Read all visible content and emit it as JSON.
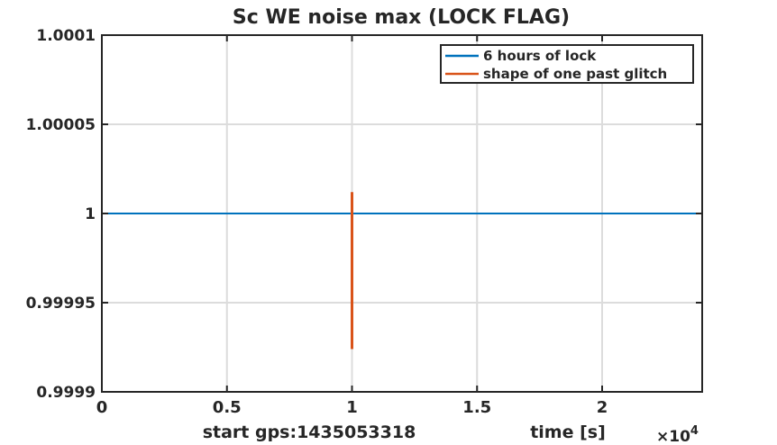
{
  "chart_data": {
    "type": "line",
    "title": "Sc WE noise max (LOCK FLAG)",
    "xlabel": "time [s]",
    "x_note": "start gps:1435053318",
    "x_multiplier": {
      "base": "×10",
      "exp": "4"
    },
    "xlim": [
      0,
      24000
    ],
    "ylim": [
      0.9999,
      1.0001
    ],
    "xticks": [
      0,
      5000,
      10000,
      15000,
      20000
    ],
    "xtick_labels": [
      "0",
      "0.5",
      "1",
      "1.5",
      "2"
    ],
    "yticks": [
      0.9999,
      0.99995,
      1,
      1.00005,
      1.0001
    ],
    "ytick_labels": [
      "0.9999",
      "0.99995",
      "1",
      "1.00005",
      "1.0001"
    ],
    "grid": true,
    "legend_position": "top-right",
    "series": [
      {
        "name": "6 hours of lock",
        "color": "#0072BD",
        "x": [
          0,
          24000
        ],
        "y": [
          1,
          1
        ]
      },
      {
        "name": "shape of one past glitch",
        "color": "#D95319",
        "x": [
          10000,
          10000
        ],
        "y": [
          0.999924,
          1.000012
        ]
      }
    ]
  }
}
